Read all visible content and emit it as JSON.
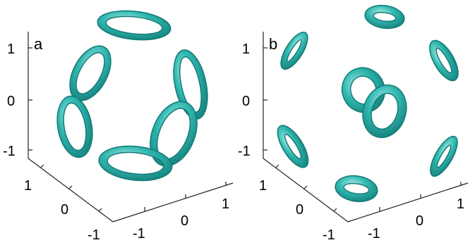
{
  "figure": {
    "panels": [
      {
        "id": "a",
        "label": "a",
        "z_ticks": [
          "1",
          "0",
          "-1"
        ],
        "x_ticks": [
          "1",
          "0",
          "-1"
        ],
        "y_ticks": [
          "-1",
          "0",
          "1"
        ]
      },
      {
        "id": "b",
        "label": "b",
        "z_ticks": [
          "1",
          "0",
          "-1"
        ],
        "x_ticks": [
          "1",
          "0",
          "-1"
        ],
        "y_ticks": [
          "-1",
          "0",
          "1"
        ]
      }
    ]
  },
  "colors": {
    "torus_fill": "#2fb7b0",
    "torus_highlight": "#a9ece6",
    "torus_shadow": "#137a76",
    "axis": "#222222",
    "background": "#ffffff"
  }
}
